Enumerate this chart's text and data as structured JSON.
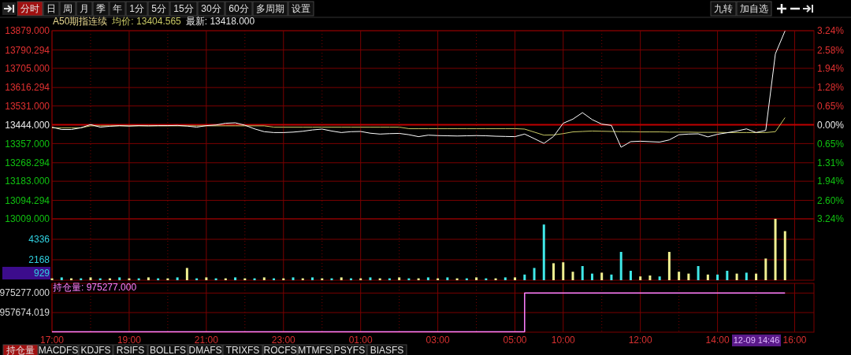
{
  "chart_data": [
    {
      "type": "other",
      "annotations": [
        "分时",
        "日",
        "周",
        "月",
        "季",
        "年",
        "1分",
        "5分",
        "15分",
        "30分",
        "60分",
        "多周期",
        "设置"
      ]
    },
    {
      "type": "other",
      "annotations": [
        "九转",
        "加自选"
      ]
    },
    {
      "type": "line",
      "annotations": [
        "A50期指连续",
        "均价: 13404.565",
        "最新: 13418.000"
      ],
      "categories": [
        null,
        null,
        null,
        null,
        null,
        null,
        null,
        null,
        null,
        null,
        null,
        null,
        null,
        null,
        null,
        null,
        null,
        null,
        null,
        null,
        null,
        null,
        null,
        null,
        null,
        null,
        null,
        null,
        null,
        null,
        null,
        null,
        null,
        null,
        null,
        null,
        null,
        null,
        null,
        null,
        null,
        null,
        null,
        null,
        null,
        null,
        null,
        null,
        null,
        null,
        null,
        null,
        null,
        null,
        null,
        null,
        null,
        null,
        null,
        null,
        null,
        null,
        null,
        null,
        null,
        null,
        null,
        null,
        null,
        null,
        null,
        null,
        null,
        null,
        null,
        null,
        null,
        null,
        null,
        null
      ],
      "ylim": [
        13009,
        13879
      ],
      "yticks": [
        {
          "value": 13879,
          "label": "13879.000"
        },
        {
          "value": 13790.294,
          "label": "13790.294"
        },
        {
          "value": 13705,
          "label": "13705.000"
        },
        {
          "value": 13616.294,
          "label": "13616.294"
        },
        {
          "value": 13531,
          "label": "13531.000"
        },
        {
          "value": 13444,
          "label": "13444.000"
        },
        {
          "value": 13357,
          "label": "13357.000"
        },
        {
          "value": 13268.294,
          "label": "13268.294"
        },
        {
          "value": 13183,
          "label": "13183.000"
        },
        {
          "value": 13094.294,
          "label": "13094.294"
        },
        {
          "value": 13009,
          "label": "13009.000"
        }
      ],
      "y2lim": [
        -3.24,
        3.24
      ],
      "y2ticks": [
        {
          "value": 3.24,
          "label": "3.24%"
        },
        {
          "value": 2.58,
          "label": "2.58%"
        },
        {
          "value": 1.94,
          "label": "1.94%"
        },
        {
          "value": 1.28,
          "label": "1.28%"
        },
        {
          "value": 0.65,
          "label": "0.65%"
        },
        {
          "value": 0,
          "label": "0.00%"
        },
        {
          "value": -0.65,
          "label": "0.65%"
        },
        {
          "value": -1.31,
          "label": "1.31%"
        },
        {
          "value": -1.94,
          "label": "1.94%"
        },
        {
          "value": -2.6,
          "label": "2.60%"
        },
        {
          "value": -3.24,
          "label": "3.24%"
        }
      ],
      "grid": true,
      "tick_labels": "y",
      "ref_lines": [
        {
          "axis": "y",
          "value": 13444,
          "color": "#c00000"
        }
      ],
      "series": [
        {
          "color": "#c8c864",
          "values": [
            13430,
            13430,
            13430,
            13430,
            13439,
            13439,
            13439,
            13439,
            13439,
            13439,
            13439,
            13439,
            13439,
            13439,
            13439,
            13439,
            13439,
            13439,
            13439,
            13439,
            13439,
            13439,
            13439,
            13433,
            13433,
            13433,
            13433,
            13433,
            13433,
            13433,
            13433,
            13433,
            13433,
            13433,
            13433,
            13433,
            13433,
            13426,
            13426,
            13426,
            13426,
            13426,
            13426,
            13426,
            13426,
            13426,
            13426,
            13426,
            13426,
            13424,
            13410,
            13396,
            13397,
            13403,
            13411,
            13413,
            13415,
            13414,
            13413,
            13412,
            13412,
            13411,
            13411,
            13411,
            13410,
            13410,
            13410,
            13409,
            13409,
            13409,
            13408,
            13408,
            13408,
            13408,
            13408,
            13412,
            13477,
            null,
            null,
            null
          ]
        },
        {
          "color": "#ffffff",
          "values": [
            13433,
            13422,
            13422,
            13430,
            13445,
            13433,
            13437,
            13440,
            13438,
            13440,
            13439,
            13440,
            13440,
            13441,
            13438,
            13433,
            13440,
            13443,
            13451,
            13453,
            13442,
            13425,
            13412,
            13408,
            13408,
            13410,
            13414,
            13420,
            13424,
            13415,
            13408,
            13412,
            13413,
            13405,
            13401,
            13403,
            13404,
            13398,
            13389,
            13396,
            13394,
            13393,
            13392,
            13393,
            13394,
            13393,
            13391,
            13390,
            13389,
            13401,
            13380,
            13358,
            13390,
            13451,
            13470,
            13500,
            13468,
            13447,
            13441,
            13340,
            13366,
            13368,
            13366,
            13364,
            13374,
            13398,
            13401,
            13402,
            13388,
            13400,
            13407,
            13415,
            13425,
            13408,
            13418,
            13772,
            13878,
            null,
            null,
            null
          ]
        }
      ]
    },
    {
      "type": "bar",
      "annotations": [
        "929"
      ],
      "categories": [
        null,
        null,
        null,
        null,
        null,
        null,
        null,
        null,
        null,
        null,
        null,
        null,
        null,
        null,
        null,
        null,
        null,
        null,
        null,
        null,
        null,
        null,
        null,
        null,
        null,
        null,
        null,
        null,
        null,
        null,
        null,
        null,
        null,
        null,
        null,
        null,
        null,
        null,
        null,
        null,
        null,
        null,
        null,
        null,
        null,
        null,
        null,
        null,
        null,
        null,
        null,
        null,
        null,
        null,
        null,
        null,
        null,
        null,
        null,
        null,
        null,
        null,
        null,
        null,
        null,
        null,
        null,
        null,
        null,
        null,
        null,
        null,
        null,
        null,
        null,
        null,
        null,
        null,
        null,
        null
      ],
      "ylim": [
        0,
        6504
      ],
      "yticks": [
        2168,
        4336
      ],
      "grid": true,
      "tick_labels": "y",
      "values": [
        200,
        300,
        200,
        200,
        300,
        200,
        200,
        300,
        200,
        200,
        300,
        200,
        200,
        300,
        1300,
        200,
        300,
        200,
        200,
        300,
        200,
        200,
        300,
        200,
        200,
        300,
        200,
        300,
        200,
        200,
        300,
        200,
        200,
        300,
        200,
        200,
        300,
        200,
        200,
        300,
        200,
        300,
        200,
        200,
        300,
        200,
        200,
        300,
        300,
        600,
        1300,
        5900,
        1800,
        1900,
        900,
        1500,
        700,
        800,
        600,
        3000,
        1000,
        400,
        500,
        400,
        3000,
        900,
        700,
        1500,
        600,
        600,
        1000,
        700,
        800,
        700,
        2300,
        6500,
        5200,
        null,
        null,
        null
      ],
      "colors": [
        "#f0f090",
        "#40e8e8",
        "#f0f090",
        "#40e8e8",
        "#f0f090",
        "#40e8e8",
        "#f0f090",
        "#40e8e8",
        "#f0f090",
        "#40e8e8",
        "#f0f090",
        "#40e8e8",
        "#f0f090",
        "#40e8e8",
        "#f0f090",
        "#40e8e8",
        "#f0f090",
        "#40e8e8",
        "#f0f090",
        "#40e8e8",
        "#f0f090",
        "#40e8e8",
        "#f0f090",
        "#40e8e8",
        "#f0f090",
        "#40e8e8",
        "#f0f090",
        "#40e8e8",
        "#f0f090",
        "#40e8e8",
        "#f0f090",
        "#40e8e8",
        "#f0f090",
        "#40e8e8",
        "#f0f090",
        "#40e8e8",
        "#f0f090",
        "#40e8e8",
        "#f0f090",
        "#40e8e8",
        "#f0f090",
        "#40e8e8",
        "#f0f090",
        "#40e8e8",
        "#f0f090",
        "#40e8e8",
        "#f0f090",
        "#40e8e8",
        "#f0f090",
        "#40e8e8",
        "#40e8e8",
        "#40e8e8",
        "#f0f090",
        "#f0f090",
        "#f0f090",
        "#40e8e8",
        "#40e8e8",
        "#f0f090",
        "#40e8e8",
        "#40e8e8",
        "#40e8e8",
        "#f0f090",
        "#f0f090",
        "#40e8e8",
        "#f0f090",
        "#f0f090",
        "#f0f090",
        "#40e8e8",
        "#f0f090",
        "#40e8e8",
        "#40e8e8",
        "#f0f090",
        "#40e8e8",
        "#f0f090",
        "#f0f090",
        "#f0f090",
        "#f0f090",
        null,
        null,
        null
      ]
    },
    {
      "type": "step",
      "annotations": [
        "持仓量: 975277.000",
        "12-09 14:46"
      ],
      "categories": [
        "17:00",
        null,
        null,
        null,
        null,
        null,
        null,
        null,
        "19:00",
        null,
        null,
        null,
        null,
        null,
        null,
        null,
        "21:00",
        null,
        null,
        null,
        null,
        null,
        null,
        null,
        "23:00",
        null,
        null,
        null,
        null,
        null,
        null,
        null,
        "01:00",
        null,
        null,
        null,
        null,
        null,
        null,
        null,
        "03:00",
        null,
        null,
        null,
        null,
        null,
        null,
        null,
        "05:00",
        null,
        null,
        null,
        null,
        "10:00",
        null,
        null,
        null,
        null,
        null,
        null,
        null,
        "12:00",
        null,
        null,
        null,
        null,
        null,
        null,
        null,
        "14:00",
        null,
        null,
        null,
        null,
        null,
        null,
        null,
        "16:00",
        null,
        null
      ],
      "ylim": [
        940000,
        984000
      ],
      "yticks": [
        {
          "value": 975277,
          "label": "975277.000"
        },
        {
          "value": 957674.019,
          "label": "957674.019"
        }
      ],
      "grid": true,
      "series": [
        {
          "color": "#ff80ff",
          "values": [
            940300,
            940300,
            940300,
            940300,
            940300,
            940300,
            940300,
            940300,
            940300,
            940300,
            940300,
            940300,
            940300,
            940300,
            940300,
            940300,
            940300,
            940300,
            940300,
            940300,
            940300,
            940300,
            940300,
            940300,
            940300,
            940300,
            940300,
            940300,
            940300,
            940300,
            940300,
            940300,
            940300,
            940300,
            940300,
            940300,
            940300,
            940300,
            940300,
            940300,
            940300,
            940300,
            940300,
            940300,
            940300,
            940300,
            940300,
            940300,
            940300,
            975277,
            975277,
            975277,
            975277,
            975277,
            975277,
            975277,
            975277,
            975277,
            975277,
            975277,
            975277,
            975277,
            975277,
            975277,
            975277,
            975277,
            975277,
            975277,
            975277,
            975277,
            975277,
            975277,
            975277,
            975277,
            975277,
            975277,
            975277,
            null,
            null,
            null
          ]
        }
      ]
    },
    {
      "type": "other",
      "annotations": [
        "持仓量",
        "MACDFS",
        "KDJFS",
        "RSIFS",
        "BOLLFS",
        "DMAFS",
        "TRIXFS",
        "ROCFS",
        "MTMFS",
        "PSYFS",
        "BIASFS"
      ]
    }
  ]
}
